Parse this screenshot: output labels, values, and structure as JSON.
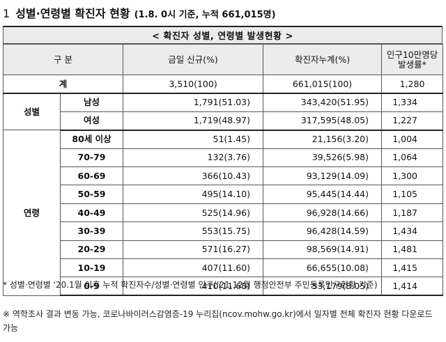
{
  "heading": {
    "number": "1",
    "title": "성별·연령별 확진자 현황",
    "note": "(1.8. 0시 기준, 누적 661,015명)"
  },
  "caption": "< 확진자 성별, 연령별 발생현황 >",
  "columns": {
    "category": "구 분",
    "new_cases": "금일 신규(%)",
    "cumulative": "확진자누계(%)",
    "rate": "인구10만명당 발생률*"
  },
  "total": {
    "label": "계",
    "new_cases": "3,510(100)",
    "cumulative": "661,015(100)",
    "rate": "1,280"
  },
  "sex": {
    "label": "성별",
    "rows": [
      {
        "label": "남성",
        "new_cases": "1,791(51.03)",
        "cumulative": "343,420(51.95)",
        "rate": "1,334"
      },
      {
        "label": "여성",
        "new_cases": "1,719(48.97)",
        "cumulative": "317,595(48.05)",
        "rate": "1,227"
      }
    ]
  },
  "age": {
    "label": "연령",
    "rows": [
      {
        "label": "80세 이상",
        "new_cases": "51(1.45)",
        "cumulative": "21,156(3.20)",
        "rate": "1,004"
      },
      {
        "label": "70-79",
        "new_cases": "132(3.76)",
        "cumulative": "39,526(5.98)",
        "rate": "1,064"
      },
      {
        "label": "60-69",
        "new_cases": "366(10.43)",
        "cumulative": "93,129(14.09)",
        "rate": "1,300"
      },
      {
        "label": "50-59",
        "new_cases": "495(14.10)",
        "cumulative": "95,445(14.44)",
        "rate": "1,105"
      },
      {
        "label": "40-49",
        "new_cases": "525(14.96)",
        "cumulative": "96,928(14.66)",
        "rate": "1,187"
      },
      {
        "label": "30-39",
        "new_cases": "553(15.75)",
        "cumulative": "96,428(14.59)",
        "rate": "1,434"
      },
      {
        "label": "20-29",
        "new_cases": "571(16.27)",
        "cumulative": "98,569(14.91)",
        "rate": "1,481"
      },
      {
        "label": "10-19",
        "new_cases": "407(11.60)",
        "cumulative": "66,655(10.08)",
        "rate": "1,415"
      },
      {
        "label": "0-9",
        "new_cases": "410(11.68)",
        "cumulative": "53,179(8.05)",
        "rate": "1,414"
      }
    ]
  },
  "footnotes": [
    "* 성별·연령별 '20.1월 이후 누적 확진자수/성별·연령별 인구('21.12월 행정안전부 주민등록인구현황 기준)",
    "※ 역학조사 결과 변동 가능, 코로나바이러스감염증-19 누리집(ncov.mohw.go.kr)에서 일자별 전체 확진자 현황 다운로드 가능"
  ]
}
